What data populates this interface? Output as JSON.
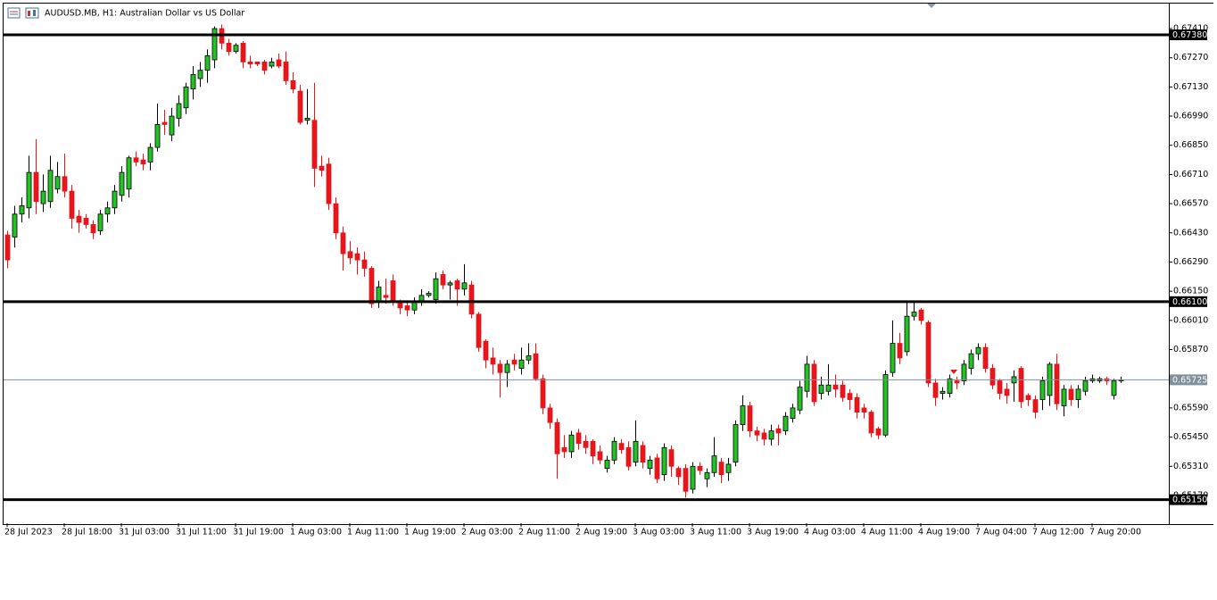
{
  "chart_data": {
    "type": "candlestick",
    "title": "AUDUSD.MB, H1:  Australian Dollar vs US Dollar",
    "categories": [
      "28 Jul 2023",
      null,
      null,
      null,
      null,
      null,
      null,
      null,
      "28 Jul 18:00",
      null,
      null,
      null,
      null,
      null,
      null,
      null,
      "31 Jul 03:00",
      null,
      null,
      null,
      null,
      null,
      null,
      null,
      "31 Jul 11:00",
      null,
      null,
      null,
      null,
      null,
      null,
      null,
      "31 Jul 19:00",
      null,
      null,
      null,
      null,
      null,
      null,
      null,
      "1 Aug 03:00",
      null,
      null,
      null,
      null,
      null,
      null,
      null,
      "1 Aug 11:00",
      null,
      null,
      null,
      null,
      null,
      null,
      null,
      "1 Aug 19:00",
      null,
      null,
      null,
      null,
      null,
      null,
      null,
      "2 Aug 03:00",
      null,
      null,
      null,
      null,
      null,
      null,
      null,
      "2 Aug 11:00",
      null,
      null,
      null,
      null,
      null,
      null,
      null,
      "2 Aug 19:00",
      null,
      null,
      null,
      null,
      null,
      null,
      null,
      "3 Aug 03:00",
      null,
      null,
      null,
      null,
      null,
      null,
      null,
      "3 Aug 11:00",
      null,
      null,
      null,
      null,
      null,
      null,
      null,
      "3 Aug 19:00",
      null,
      null,
      null,
      null,
      null,
      null,
      null,
      "4 Aug 03:00",
      null,
      null,
      null,
      null,
      null,
      null,
      null,
      "4 Aug 11:00",
      null,
      null,
      null,
      null,
      null,
      null,
      null,
      "4 Aug 19:00",
      null,
      null,
      null,
      null,
      null,
      null,
      null,
      "7 Aug 04:00",
      null,
      null,
      null,
      null,
      null,
      null,
      null,
      "7 Aug 12:00",
      null,
      null,
      null,
      null,
      null,
      null,
      null,
      "7 Aug 20:00",
      null,
      null,
      null,
      null
    ],
    "open": [
      0.6642,
      0.6641,
      0.6652,
      0.6655,
      0.6672,
      0.6657,
      0.6658,
      0.6664,
      0.667,
      0.6663,
      0.6651,
      0.665,
      0.6647,
      0.6644,
      0.6652,
      0.6655,
      0.6661,
      0.6664,
      0.6679,
      0.6678,
      0.6677,
      0.6684,
      0.6696,
      0.669,
      0.6698,
      0.6703,
      0.6712,
      0.6717,
      0.6721,
      0.6726,
      0.6741,
      0.6734,
      0.673,
      0.6734,
      0.6725,
      0.6725,
      0.6725,
      0.6723,
      0.6726,
      0.6725,
      0.6716,
      0.6711,
      0.6697,
      0.6697,
      0.6675,
      0.6676,
      0.6657,
      0.6643,
      0.6634,
      0.6633,
      0.663,
      0.6626,
      0.661,
      0.6613,
      0.662,
      0.661,
      0.6608,
      0.6606,
      0.661,
      0.6613,
      0.6611,
      0.6623,
      0.6618,
      0.662,
      0.6616,
      0.6618,
      0.6604,
      0.6591,
      0.6583,
      0.658,
      0.6576,
      0.6582,
      0.6578,
      0.6582,
      0.6585,
      0.6573,
      0.6559,
      0.6552,
      0.654,
      0.6538,
      0.6547,
      0.6543,
      0.6543,
      0.6538,
      0.653,
      0.6534,
      0.6542,
      0.654,
      0.6533,
      0.6541,
      0.653,
      0.6535,
      0.6527,
      0.6539,
      0.653,
      0.653,
      0.652,
      0.6531,
      0.6525,
      0.6528,
      0.6533,
      0.6528,
      0.6533,
      0.6551,
      0.656,
      0.6548,
      0.6547,
      0.6544,
      0.6549,
      0.6548,
      0.6554,
      0.6558,
      0.6567,
      0.658,
      0.6566,
      0.6567,
      0.657,
      0.657,
      0.6566,
      0.6564,
      0.6559,
      0.6557,
      0.6549,
      0.6546,
      0.6576,
      0.659,
      0.6586,
      0.6603,
      0.6606,
      0.66,
      0.6571,
      0.6566,
      0.6566,
      0.6572,
      0.6572,
      0.6578,
      0.6585,
      0.6588,
      0.6578,
      0.6572,
      0.6568,
      0.6571,
      0.6578,
      0.6565,
      0.6563,
      0.6563,
      0.6565,
      0.658,
      0.656,
      0.6568,
      0.6563,
      0.6567,
      0.6572,
      0.6572,
      0.6573,
      0.6565,
      0.6572
    ],
    "high": [
      0.6644,
      0.6656,
      0.666,
      0.668,
      0.6688,
      0.6671,
      0.668,
      0.6677,
      0.6681,
      0.6666,
      0.6654,
      0.6652,
      0.6649,
      0.6654,
      0.6658,
      0.6666,
      0.6675,
      0.668,
      0.6682,
      0.6681,
      0.6686,
      0.6705,
      0.6702,
      0.6703,
      0.6709,
      0.6715,
      0.6723,
      0.6725,
      0.6731,
      0.6742,
      0.6743,
      0.6736,
      0.6734,
      0.6735,
      0.6728,
      0.6725,
      0.6726,
      0.6727,
      0.6729,
      0.673,
      0.672,
      0.6714,
      0.6712,
      0.6715,
      0.668,
      0.6679,
      0.666,
      0.6646,
      0.6639,
      0.6636,
      0.6634,
      0.6627,
      0.662,
      0.6621,
      0.6623,
      0.6611,
      0.661,
      0.6612,
      0.6616,
      0.6615,
      0.6624,
      0.6625,
      0.662,
      0.6621,
      0.6628,
      0.662,
      0.6605,
      0.6592,
      0.6588,
      0.6582,
      0.6582,
      0.6585,
      0.6588,
      0.659,
      0.659,
      0.6575,
      0.6561,
      0.6554,
      0.6546,
      0.6548,
      0.6549,
      0.6546,
      0.6544,
      0.6541,
      0.6536,
      0.6545,
      0.6544,
      0.6543,
      0.6553,
      0.6543,
      0.6536,
      0.6537,
      0.6542,
      0.6541,
      0.6531,
      0.6532,
      0.6533,
      0.6533,
      0.653,
      0.6545,
      0.6535,
      0.6535,
      0.6553,
      0.6565,
      0.6562,
      0.655,
      0.6549,
      0.6551,
      0.6551,
      0.6557,
      0.6561,
      0.6572,
      0.6584,
      0.6582,
      0.6574,
      0.658,
      0.6575,
      0.6572,
      0.6568,
      0.6566,
      0.6561,
      0.6558,
      0.655,
      0.6577,
      0.6601,
      0.6595,
      0.661,
      0.661,
      0.6607,
      0.6601,
      0.6573,
      0.6569,
      0.6575,
      0.6574,
      0.6582,
      0.6587,
      0.659,
      0.659,
      0.658,
      0.6573,
      0.6571,
      0.6577,
      0.6579,
      0.6566,
      0.6565,
      0.6574,
      0.6581,
      0.6585,
      0.657,
      0.657,
      0.657,
      0.6574,
      0.6575,
      0.6574,
      0.6574,
      0.6573,
      0.6574
    ],
    "low": [
      0.6626,
      0.6636,
      0.6648,
      0.665,
      0.6652,
      0.6653,
      0.6655,
      0.6662,
      0.666,
      0.6645,
      0.6643,
      0.6645,
      0.664,
      0.6642,
      0.6648,
      0.6652,
      0.6658,
      0.666,
      0.6675,
      0.6673,
      0.6673,
      0.6682,
      0.669,
      0.6687,
      0.6694,
      0.67,
      0.6707,
      0.6713,
      0.6715,
      0.6722,
      0.6731,
      0.6728,
      0.6729,
      0.6722,
      0.6722,
      0.6723,
      0.6719,
      0.6722,
      0.6722,
      0.6714,
      0.671,
      0.6695,
      0.6695,
      0.6665,
      0.667,
      0.6654,
      0.664,
      0.6625,
      0.6628,
      0.6623,
      0.6622,
      0.6607,
      0.6607,
      0.6609,
      0.6608,
      0.6604,
      0.6603,
      0.6604,
      0.6608,
      0.6612,
      0.6609,
      0.6616,
      0.6611,
      0.6608,
      0.6613,
      0.6602,
      0.6586,
      0.6578,
      0.6575,
      0.6564,
      0.6569,
      0.6577,
      0.6575,
      0.658,
      0.6572,
      0.6556,
      0.6549,
      0.6525,
      0.6535,
      0.6535,
      0.6539,
      0.6537,
      0.6532,
      0.6532,
      0.6528,
      0.6532,
      0.6537,
      0.6529,
      0.6531,
      0.653,
      0.6527,
      0.6523,
      0.6524,
      0.6526,
      0.6522,
      0.6516,
      0.6518,
      0.6527,
      0.6521,
      0.6526,
      0.6523,
      0.6524,
      0.6531,
      0.6548,
      0.6545,
      0.6543,
      0.6541,
      0.6541,
      0.6541,
      0.6546,
      0.6552,
      0.6556,
      0.6564,
      0.656,
      0.6563,
      0.6565,
      0.6564,
      0.6562,
      0.6558,
      0.6554,
      0.6554,
      0.6545,
      0.6544,
      0.6545,
      0.6574,
      0.658,
      0.6584,
      0.6601,
      0.6599,
      0.6569,
      0.656,
      0.6563,
      0.6564,
      0.6568,
      0.657,
      0.6575,
      0.6582,
      0.6576,
      0.6568,
      0.6563,
      0.6561,
      0.6562,
      0.6559,
      0.656,
      0.6554,
      0.6558,
      0.656,
      0.6558,
      0.6555,
      0.656,
      0.6559,
      0.6565,
      0.6571,
      0.6571,
      0.657,
      0.6563,
      0.6571
    ],
    "close": [
      0.663,
      0.6652,
      0.6656,
      0.6672,
      0.6658,
      0.6663,
      0.6673,
      0.667,
      0.6663,
      0.665,
      0.6648,
      0.6647,
      0.6643,
      0.6652,
      0.6655,
      0.6663,
      0.6672,
      0.6679,
      0.6677,
      0.6676,
      0.6684,
      0.6695,
      0.6695,
      0.6699,
      0.6705,
      0.6713,
      0.6719,
      0.6721,
      0.6728,
      0.6741,
      0.6734,
      0.673,
      0.6733,
      0.6725,
      0.6724,
      0.6724,
      0.6721,
      0.6725,
      0.6723,
      0.6716,
      0.6712,
      0.6696,
      0.6698,
      0.6674,
      0.6673,
      0.6657,
      0.6643,
      0.6633,
      0.6631,
      0.663,
      0.6626,
      0.6609,
      0.6617,
      0.6612,
      0.661,
      0.6607,
      0.6606,
      0.661,
      0.6613,
      0.6614,
      0.6621,
      0.6618,
      0.6619,
      0.6616,
      0.6619,
      0.6604,
      0.6588,
      0.6582,
      0.658,
      0.6576,
      0.658,
      0.658,
      0.6582,
      0.6584,
      0.6573,
      0.6559,
      0.6552,
      0.6537,
      0.6538,
      0.6546,
      0.6542,
      0.654,
      0.6536,
      0.6534,
      0.6534,
      0.6543,
      0.6539,
      0.6531,
      0.6543,
      0.6533,
      0.6534,
      0.6525,
      0.654,
      0.6531,
      0.6526,
      0.6519,
      0.6531,
      0.6529,
      0.6528,
      0.6536,
      0.6527,
      0.6532,
      0.6551,
      0.656,
      0.6548,
      0.6546,
      0.6544,
      0.6548,
      0.6547,
      0.6555,
      0.6559,
      0.6569,
      0.658,
      0.6562,
      0.657,
      0.657,
      0.6568,
      0.6564,
      0.6563,
      0.6557,
      0.6557,
      0.6547,
      0.6546,
      0.6575,
      0.659,
      0.6583,
      0.6603,
      0.6605,
      0.6601,
      0.6571,
      0.6564,
      0.6567,
      0.6573,
      0.6571,
      0.658,
      0.6585,
      0.6588,
      0.6578,
      0.657,
      0.6566,
      0.6565,
      0.6574,
      0.6562,
      0.6563,
      0.6557,
      0.6572,
      0.658,
      0.6561,
      0.6568,
      0.6563,
      0.6568,
      0.6572,
      0.6573,
      0.6573,
      0.6572,
      0.6572,
      0.65725
    ],
    "up_color": "#22c322",
    "down_color": "#e8151b",
    "ylim": [
      0.65037,
      0.6753
    ],
    "yticks": [
      {
        "value": 0.6741,
        "label": "0.67410"
      },
      {
        "value": 0.6727,
        "label": "0.67270"
      },
      {
        "value": 0.6713,
        "label": "0.67130"
      },
      {
        "value": 0.6699,
        "label": "0.66990"
      },
      {
        "value": 0.6685,
        "label": "0.66850"
      },
      {
        "value": 0.6671,
        "label": "0.66710"
      },
      {
        "value": 0.6657,
        "label": "0.66570"
      },
      {
        "value": 0.6643,
        "label": "0.66430"
      },
      {
        "value": 0.6629,
        "label": "0.66290"
      },
      {
        "value": 0.6615,
        "label": "0.66150"
      },
      {
        "value": 0.6601,
        "label": "0.66010"
      },
      {
        "value": 0.6587,
        "label": "0.65870"
      },
      {
        "value": 0.6559,
        "label": "0.65590"
      },
      {
        "value": 0.6545,
        "label": "0.65450"
      },
      {
        "value": 0.6531,
        "label": "0.65310"
      },
      {
        "value": 0.6517,
        "label": "0.65170"
      }
    ],
    "levels": [
      {
        "value": 0.6738,
        "label": "0.67380"
      },
      {
        "value": 0.661,
        "label": "0.66100"
      },
      {
        "value": 0.6515,
        "label": "0.65150"
      }
    ],
    "price_line": {
      "value": 0.65725,
      "label": "0.65725",
      "color": "#7f8f9c"
    }
  }
}
